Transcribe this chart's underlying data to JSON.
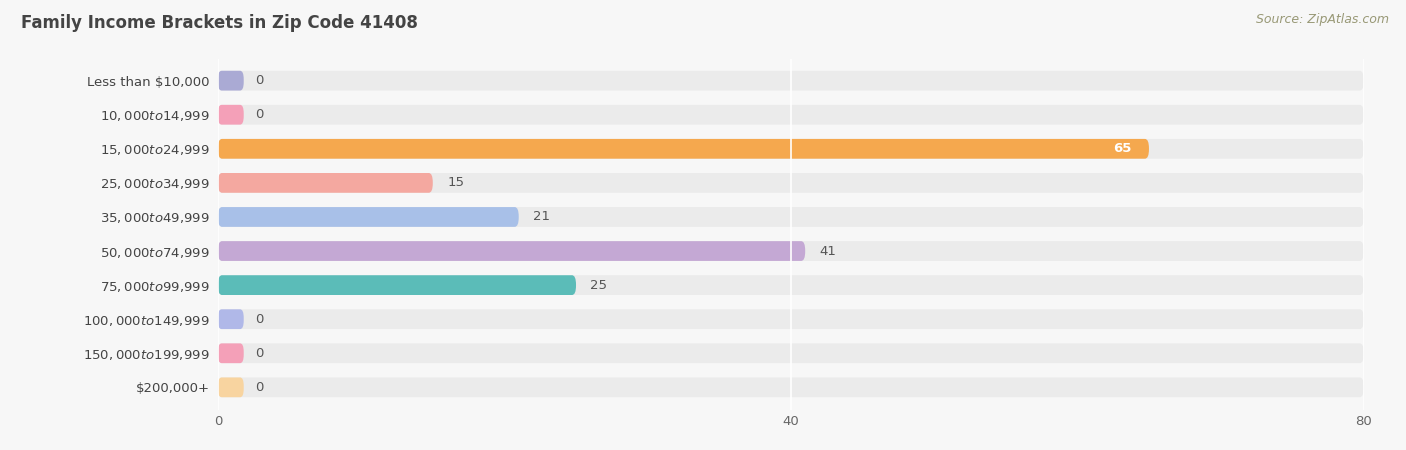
{
  "title": "Family Income Brackets in Zip Code 41408",
  "source": "Source: ZipAtlas.com",
  "categories": [
    "Less than $10,000",
    "$10,000 to $14,999",
    "$15,000 to $24,999",
    "$25,000 to $34,999",
    "$35,000 to $49,999",
    "$50,000 to $74,999",
    "$75,000 to $99,999",
    "$100,000 to $149,999",
    "$150,000 to $199,999",
    "$200,000+"
  ],
  "values": [
    0,
    0,
    65,
    15,
    21,
    41,
    25,
    0,
    0,
    0
  ],
  "bar_colors": [
    "#aaaad4",
    "#f4a0b8",
    "#f5a84e",
    "#f4a8a0",
    "#a8c0e8",
    "#c4a8d4",
    "#5bbcb8",
    "#b0b8e8",
    "#f4a0b8",
    "#f8d4a0"
  ],
  "background_color": "#f7f7f7",
  "bar_bg_color": "#ebebeb",
  "xlim": [
    0,
    80
  ],
  "xticks": [
    0,
    40,
    80
  ],
  "title_fontsize": 12,
  "label_fontsize": 9.5,
  "value_fontsize": 9.5,
  "source_fontsize": 9
}
